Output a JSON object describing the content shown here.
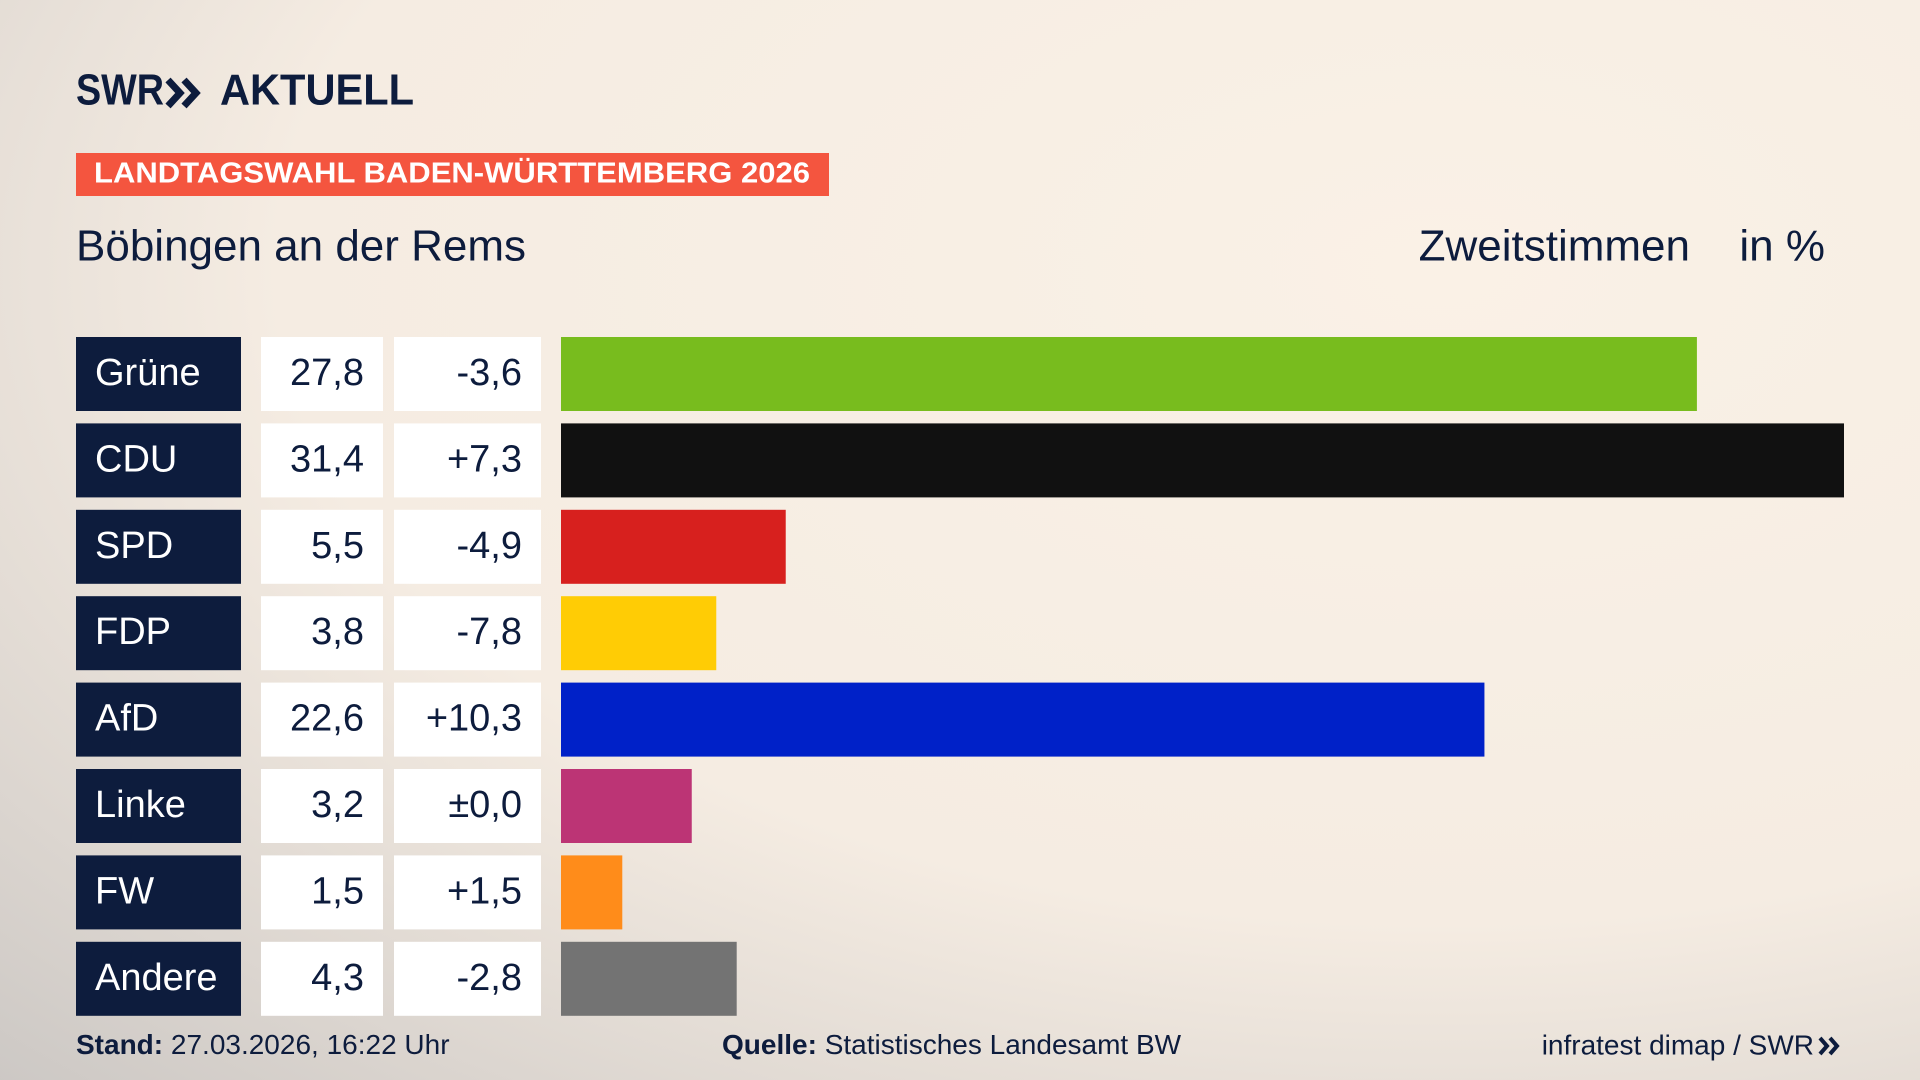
{
  "header": {
    "brand": "SWR",
    "product": "AKTUELL",
    "banner": "LANDTAGSWAHL BADEN-WÜRTTEMBERG 2026"
  },
  "chart_data": {
    "type": "bar",
    "title": "Böbingen an der Rems",
    "subtitle": "Zweitstimmen",
    "unit": "in %",
    "categories": [
      "Grüne",
      "CDU",
      "SPD",
      "FDP",
      "AfD",
      "Linke",
      "FW",
      "Andere"
    ],
    "values": [
      27.8,
      31.4,
      5.5,
      3.8,
      22.6,
      3.2,
      1.5,
      4.3
    ],
    "value_labels": [
      "27,8",
      "31,4",
      "5,5",
      "3,8",
      "22,6",
      "3,2",
      "1,5",
      "4,3"
    ],
    "changes": [
      "-3,6",
      "+7,3",
      "-4,9",
      "-7,8",
      "+10,3",
      "±0,0",
      "+1,5",
      "-2,8"
    ],
    "colors": [
      "#78bc1e",
      "#111111",
      "#d7201e",
      "#ffcc05",
      "#0021c8",
      "#bc3475",
      "#ff8c1a",
      "#737373"
    ]
  },
  "footer": {
    "stand_label": "Stand:",
    "stand": "27.03.2026, 16:22 Uhr",
    "source_label": "Quelle:",
    "source": "Statistisches Landesamt BW",
    "credit": "infratest dimap / SWR"
  }
}
